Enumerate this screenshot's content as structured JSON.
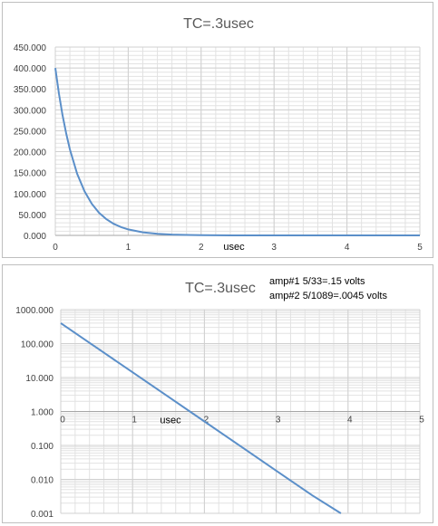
{
  "colors": {
    "series": "#5b8fc9",
    "grid_major": "#d0d0d0",
    "grid_minor": "#e2e2e2",
    "axis": "#a6a6a6"
  },
  "chart_data": [
    {
      "type": "line",
      "title": "TC=.3usec",
      "xlabel": "usec",
      "ylabel": "",
      "xlim": [
        0,
        5
      ],
      "ylim": [
        0,
        450
      ],
      "x_ticks": [
        "0",
        "1",
        "2",
        "3",
        "4",
        "5"
      ],
      "y_ticks": [
        "0.000",
        "50.000",
        "100.000",
        "150.000",
        "200.000",
        "250.000",
        "300.000",
        "350.000",
        "400.000",
        "450.000"
      ],
      "grid": true,
      "legend": "none",
      "series": [
        {
          "x": [
            0,
            0.05,
            0.1,
            0.15,
            0.2,
            0.3,
            0.4,
            0.5,
            0.6,
            0.7,
            0.8,
            0.9,
            1.0,
            1.2,
            1.4,
            1.6,
            1.8,
            2.0,
            2.5,
            3.0,
            3.5,
            4.0,
            4.5,
            5.0
          ],
          "y": [
            400,
            338.6,
            286.6,
            242.6,
            205.4,
            147.2,
            105.4,
            75.5,
            54.1,
            38.8,
            27.8,
            19.9,
            14.3,
            7.3,
            3.8,
            1.9,
            1.0,
            0.5,
            0.1,
            0.02,
            0.004,
            0.0006,
            0.0001,
            2e-05
          ]
        }
      ]
    },
    {
      "type": "line",
      "title": "TC=.3usec",
      "xlabel": "usec",
      "ylabel": "",
      "yscale": "log",
      "xlim": [
        0,
        5
      ],
      "ylim": [
        0.001,
        1000
      ],
      "x_ticks": [
        "0",
        "1",
        "2",
        "3",
        "4",
        "5"
      ],
      "y_ticks": [
        "0.001",
        "0.010",
        "0.100",
        "1.000",
        "10.000",
        "100.000",
        "1000.000"
      ],
      "grid": true,
      "legend": "none",
      "annotations": [
        "amp#1  5/33=.15 volts",
        "amp#2  5/1089=.0045 volts"
      ],
      "series": [
        {
          "x": [
            0,
            0.5,
            1.0,
            1.5,
            2.0,
            2.5,
            3.0,
            3.5,
            3.9
          ],
          "y": [
            400,
            75.5,
            14.3,
            2.7,
            0.51,
            0.096,
            0.018,
            0.0034,
            0.001
          ]
        }
      ]
    }
  ]
}
